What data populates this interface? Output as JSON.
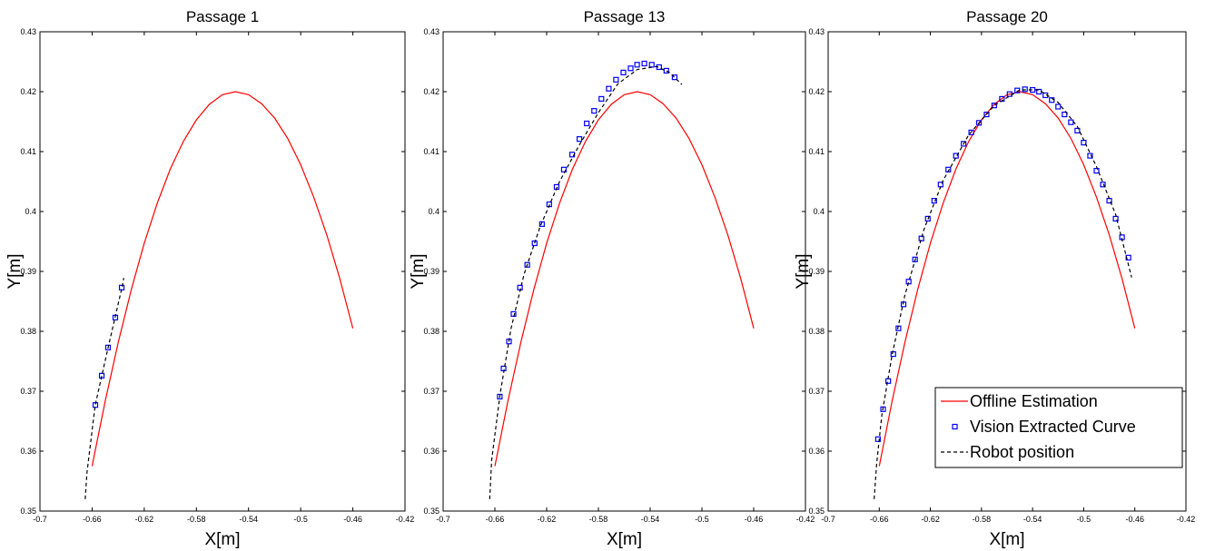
{
  "chart_data": [
    {
      "type": "line",
      "title": "Passage 1",
      "xlabel": "X[m]",
      "ylabel": "Y[m]",
      "xlim": [
        -0.7,
        -0.42
      ],
      "ylim": [
        0.35,
        0.43
      ],
      "xticks": [
        -0.7,
        -0.66,
        -0.62,
        -0.58,
        -0.54,
        -0.5,
        -0.46,
        -0.42
      ],
      "yticks": [
        0.35,
        0.36,
        0.37,
        0.38,
        0.39,
        0.4,
        0.41,
        0.42,
        0.43
      ],
      "series": [
        {
          "color": "#ff0000",
          "style": "solid",
          "x": [
            -0.66,
            -0.65,
            -0.64,
            -0.63,
            -0.62,
            -0.61,
            -0.6,
            -0.59,
            -0.58,
            -0.57,
            -0.56,
            -0.55,
            -0.54,
            -0.53,
            -0.52,
            -0.51,
            -0.5,
            -0.49,
            -0.48,
            -0.47,
            -0.46
          ],
          "values": [
            0.3575,
            0.3683,
            0.3781,
            0.3869,
            0.3947,
            0.4014,
            0.4071,
            0.4117,
            0.4153,
            0.4179,
            0.4195,
            0.42,
            0.4195,
            0.418,
            0.4156,
            0.4122,
            0.4078,
            0.4024,
            0.3961,
            0.3888,
            0.3805
          ]
        },
        {
          "color": "#0000ff",
          "style": "square",
          "x": [
            -0.6575,
            -0.6526,
            -0.6478,
            -0.6422,
            -0.6373
          ],
          "values": [
            0.3677,
            0.3726,
            0.3773,
            0.3823,
            0.3873
          ]
        },
        {
          "color": "#000000",
          "style": "dashed",
          "x": [
            -0.6653,
            -0.6639,
            -0.6576,
            -0.6477,
            -0.6371,
            -0.6357
          ],
          "values": [
            0.352,
            0.3565,
            0.3677,
            0.3773,
            0.3873,
            0.3889
          ]
        }
      ]
    },
    {
      "type": "line",
      "title": "Passage 13",
      "xlabel": "X[m]",
      "ylabel": "Y[m]",
      "xlim": [
        -0.7,
        -0.42
      ],
      "ylim": [
        0.35,
        0.43
      ],
      "xticks": [
        -0.7,
        -0.66,
        -0.62,
        -0.58,
        -0.54,
        -0.5,
        -0.46,
        -0.42
      ],
      "yticks": [
        0.35,
        0.36,
        0.37,
        0.38,
        0.39,
        0.4,
        0.41,
        0.42,
        0.43
      ],
      "series": [
        {
          "color": "#ff0000",
          "style": "solid",
          "x": [
            -0.66,
            -0.65,
            -0.64,
            -0.63,
            -0.62,
            -0.61,
            -0.6,
            -0.59,
            -0.58,
            -0.57,
            -0.56,
            -0.55,
            -0.54,
            -0.53,
            -0.52,
            -0.51,
            -0.5,
            -0.49,
            -0.48,
            -0.47,
            -0.46
          ],
          "values": [
            0.3575,
            0.3683,
            0.3781,
            0.3869,
            0.3947,
            0.4014,
            0.4071,
            0.4117,
            0.4153,
            0.4179,
            0.4195,
            0.42,
            0.4195,
            0.418,
            0.4156,
            0.4122,
            0.4078,
            0.4024,
            0.3961,
            0.3888,
            0.3805
          ]
        },
        {
          "color": "#0000ff",
          "style": "square",
          "x": [
            -0.6562,
            -0.6533,
            -0.6491,
            -0.6456,
            -0.6406,
            -0.635,
            -0.6293,
            -0.6236,
            -0.618,
            -0.6123,
            -0.6067,
            -0.6003,
            -0.5947,
            -0.589,
            -0.5833,
            -0.5777,
            -0.572,
            -0.5664,
            -0.5607,
            -0.5551,
            -0.5501,
            -0.5445,
            -0.5388,
            -0.5331,
            -0.5275,
            -0.5211
          ],
          "values": [
            0.3691,
            0.3738,
            0.3783,
            0.3829,
            0.3873,
            0.3911,
            0.3947,
            0.3979,
            0.4012,
            0.4041,
            0.407,
            0.4095,
            0.4121,
            0.4147,
            0.4168,
            0.4188,
            0.4205,
            0.422,
            0.4232,
            0.4239,
            0.4245,
            0.4247,
            0.4245,
            0.4241,
            0.4235,
            0.4224
          ]
        },
        {
          "color": "#000000",
          "style": "dashed",
          "x": [
            -0.664,
            -0.6625,
            -0.656,
            -0.6475,
            -0.6375,
            -0.625,
            -0.61,
            -0.595,
            -0.58,
            -0.565,
            -0.55,
            -0.535,
            -0.525,
            -0.5155
          ],
          "values": [
            0.352,
            0.3585,
            0.3695,
            0.3805,
            0.3895,
            0.3975,
            0.405,
            0.411,
            0.4165,
            0.4213,
            0.4237,
            0.4242,
            0.4232,
            0.4212
          ]
        }
      ]
    },
    {
      "type": "line",
      "title": "Passage 20",
      "xlabel": "X[m]",
      "ylabel": "Y[m]",
      "xlim": [
        -0.7,
        -0.42
      ],
      "ylim": [
        0.35,
        0.43
      ],
      "xticks": [
        -0.7,
        -0.66,
        -0.62,
        -0.58,
        -0.54,
        -0.5,
        -0.46,
        -0.42
      ],
      "yticks": [
        0.35,
        0.36,
        0.37,
        0.38,
        0.39,
        0.4,
        0.41,
        0.42,
        0.43
      ],
      "legend": "lower right",
      "series": [
        {
          "name": "Offline Estimation",
          "color": "#ff0000",
          "style": "solid",
          "x": [
            -0.66,
            -0.65,
            -0.64,
            -0.63,
            -0.62,
            -0.61,
            -0.6,
            -0.59,
            -0.58,
            -0.57,
            -0.56,
            -0.55,
            -0.54,
            -0.53,
            -0.52,
            -0.51,
            -0.5,
            -0.49,
            -0.48,
            -0.47,
            -0.46
          ],
          "values": [
            0.3575,
            0.3683,
            0.3781,
            0.3869,
            0.3947,
            0.4014,
            0.4071,
            0.4117,
            0.4153,
            0.4179,
            0.4195,
            0.42,
            0.4195,
            0.418,
            0.4156,
            0.4122,
            0.4078,
            0.4024,
            0.3961,
            0.3888,
            0.3805
          ]
        },
        {
          "name": "Vision Extracted Curve",
          "color": "#0000ff",
          "style": "square",
          "x": [
            -0.661,
            -0.657,
            -0.653,
            -0.649,
            -0.645,
            -0.641,
            -0.637,
            -0.632,
            -0.627,
            -0.622,
            -0.617,
            -0.612,
            -0.606,
            -0.6,
            -0.594,
            -0.588,
            -0.582,
            -0.576,
            -0.57,
            -0.564,
            -0.558,
            -0.552,
            -0.546,
            -0.54,
            -0.535,
            -0.53,
            -0.525,
            -0.52,
            -0.515,
            -0.51,
            -0.505,
            -0.5,
            -0.495,
            -0.49,
            -0.485,
            -0.48,
            -0.475,
            -0.47,
            -0.465
          ],
          "values": [
            0.362,
            0.367,
            0.3717,
            0.3762,
            0.3805,
            0.3845,
            0.3883,
            0.392,
            0.3955,
            0.3988,
            0.4018,
            0.4045,
            0.407,
            0.4093,
            0.4113,
            0.4132,
            0.4148,
            0.4162,
            0.4177,
            0.4188,
            0.4196,
            0.4202,
            0.4204,
            0.4203,
            0.42,
            0.4194,
            0.4186,
            0.4175,
            0.4162,
            0.4149,
            0.4135,
            0.4115,
            0.4093,
            0.4068,
            0.4045,
            0.4018,
            0.3988,
            0.3957,
            0.3923
          ]
        },
        {
          "name": "Robot position",
          "color": "#000000",
          "style": "dashed",
          "x": [
            -0.664,
            -0.662,
            -0.658,
            -0.65,
            -0.64,
            -0.625,
            -0.61,
            -0.59,
            -0.57,
            -0.55,
            -0.535,
            -0.52,
            -0.505,
            -0.49,
            -0.475,
            -0.4625
          ],
          "values": [
            0.352,
            0.358,
            0.366,
            0.376,
            0.386,
            0.397,
            0.4052,
            0.4128,
            0.4177,
            0.4203,
            0.4203,
            0.4182,
            0.4142,
            0.4075,
            0.3995,
            0.389
          ]
        }
      ]
    }
  ]
}
